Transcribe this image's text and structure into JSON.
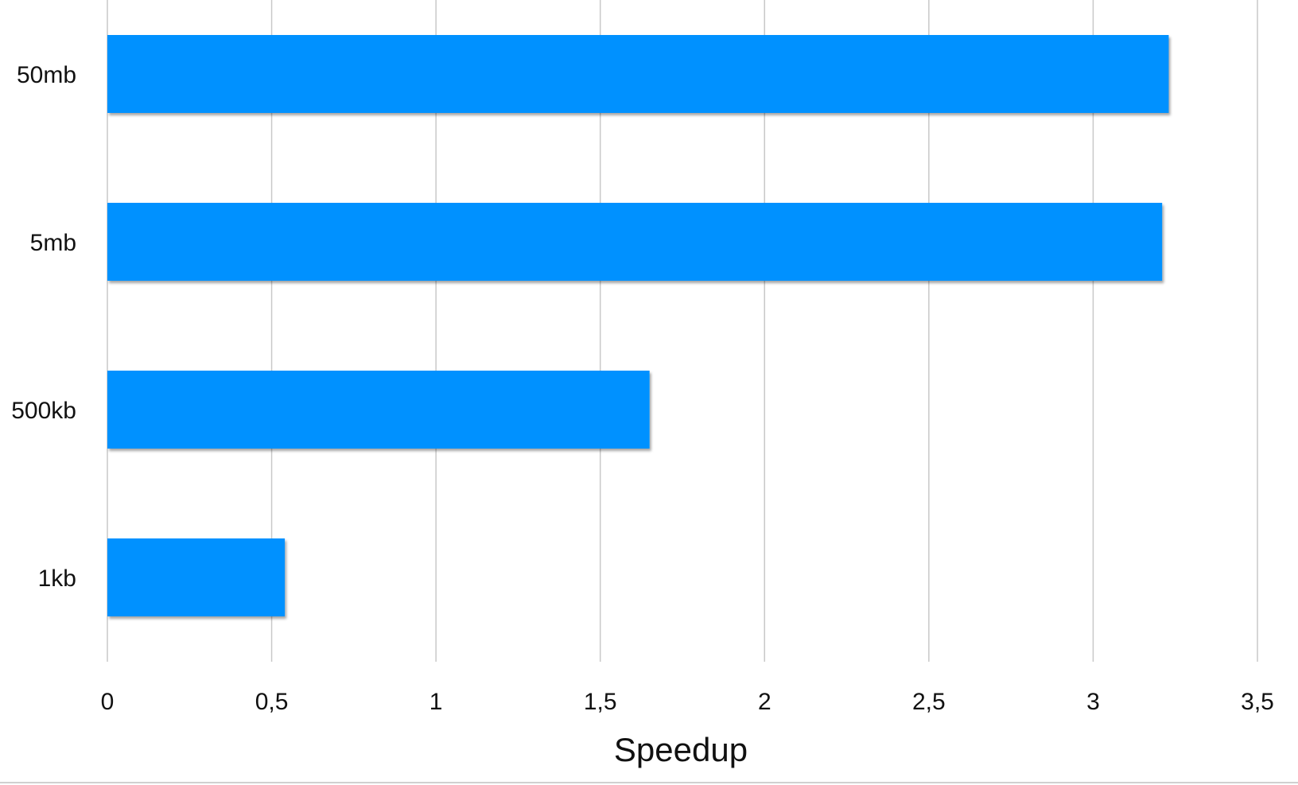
{
  "chart_data": {
    "type": "bar",
    "orientation": "horizontal",
    "categories": [
      "50mb",
      "5mb",
      "500kb",
      "1kb"
    ],
    "values": [
      3.23,
      3.21,
      1.65,
      0.54
    ],
    "xlabel": "Speedup",
    "ylabel": "",
    "xlim": [
      0,
      3.5
    ],
    "xticks": [
      "0",
      "0,5",
      "1",
      "1,5",
      "2",
      "2,5",
      "3",
      "3,5"
    ],
    "grid": "vertical",
    "legend": "none",
    "bar_color": "#0091ff"
  }
}
